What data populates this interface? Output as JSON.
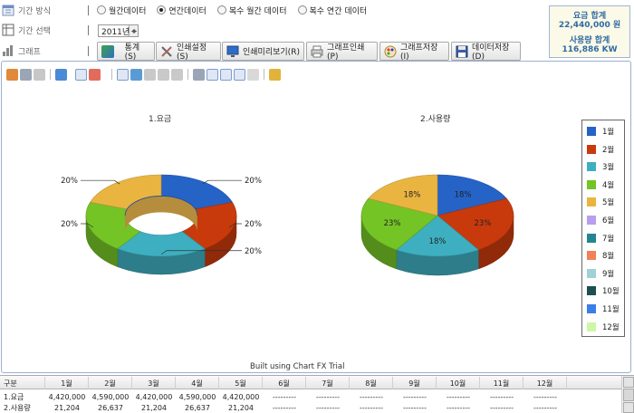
{
  "options": {
    "period_label": "기간 방식",
    "period_choices": [
      "월간데이터",
      "연간데이터",
      "복수 월간 데이터",
      "복수 연간 데이터"
    ],
    "period_selected": 1,
    "year_label": "기간 선택",
    "year_value": "2011년",
    "graph_label": "그래프"
  },
  "buttons": {
    "stats": "통계(S)",
    "print_setup": "인쇄설정(S)",
    "print_preview": "인쇄미리보기(R)",
    "graph_print": "그래프인쇄(P)",
    "graph_save": "그래프저장(I)",
    "data_save": "데이터저장(D)"
  },
  "summary": {
    "fee_title": "요금 합계",
    "fee_value": "22,440,000 원",
    "usage_title": "사용량 합계",
    "usage_value": "116,886 KW"
  },
  "chart_data": [
    {
      "type": "pie",
      "variant": "3d-doughnut",
      "title": "1.요금",
      "categories": [
        "1월",
        "2월",
        "3월",
        "4월",
        "5월"
      ],
      "values": [
        4420000,
        4590000,
        4420000,
        4590000,
        4420000
      ],
      "data_labels": [
        "20%",
        "20%",
        "20%",
        "20%",
        "20%"
      ],
      "label_placement": "outside"
    },
    {
      "type": "pie",
      "variant": "3d-pie",
      "title": "2.사용량",
      "categories": [
        "1월",
        "2월",
        "3월",
        "4월",
        "5월"
      ],
      "values": [
        21204,
        26637,
        21204,
        26637,
        21204
      ],
      "data_labels": [
        "18%",
        "23%",
        "18%",
        "23%",
        "18%"
      ],
      "label_placement": "inside"
    }
  ],
  "legend": {
    "placement": "right",
    "items": [
      {
        "label": "1월",
        "color": "#2563c7"
      },
      {
        "label": "2월",
        "color": "#c83a0c"
      },
      {
        "label": "3월",
        "color": "#3eafc0"
      },
      {
        "label": "4월",
        "color": "#74c426"
      },
      {
        "label": "5월",
        "color": "#eab441"
      },
      {
        "label": "6월",
        "color": "#b79fec"
      },
      {
        "label": "7월",
        "color": "#238592"
      },
      {
        "label": "8월",
        "color": "#f08159"
      },
      {
        "label": "9월",
        "color": "#9ed2d5"
      },
      {
        "label": "10월",
        "color": "#1e4f4f"
      },
      {
        "label": "11월",
        "color": "#3a7fe8"
      },
      {
        "label": "12월",
        "color": "#cdf7a4"
      }
    ]
  },
  "built_by": "Built using Chart FX Trial",
  "table": {
    "headers": [
      "구분",
      "1월",
      "2월",
      "3월",
      "4월",
      "5월",
      "6월",
      "7월",
      "8월",
      "9월",
      "10월",
      "11월",
      "12월"
    ],
    "rows": [
      [
        "1.요금",
        "4,420,000",
        "4,590,000",
        "4,420,000",
        "4,590,000",
        "4,420,000",
        "---------",
        "---------",
        "---------",
        "---------",
        "---------",
        "---------",
        "---------"
      ],
      [
        "2.사용량",
        "21,204",
        "26,637",
        "21,204",
        "26,637",
        "21,204",
        "---------",
        "---------",
        "---------",
        "---------",
        "---------",
        "---------",
        "---------"
      ]
    ]
  }
}
